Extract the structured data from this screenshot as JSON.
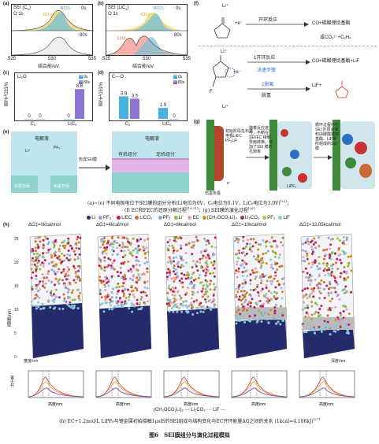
{
  "panel_letters": {
    "a": "(a)",
    "b": "(b)",
    "c": "(c)",
    "d": "(d)",
    "e": "(e)",
    "f": "(f)",
    "g": "(g)",
    "h": "(h)"
  },
  "a": {
    "sei": "SEI (C",
    "sub": "6",
    "sei_end": ")",
    "o1s": "O 1s",
    "t0": "0s",
    "t80": "80s",
    "co3": "CO₃²⁻",
    "rco3": "RCO₃⁻",
    "xlabel": "结合能/eV",
    "ticks": [
      "525",
      "530",
      "535"
    ]
  },
  "b": {
    "sei": "SEI (LiC",
    "sub": "6",
    "sei_end": ")",
    "o1s": "O 1s",
    "t0": "0s",
    "t80": "80s",
    "co3": "CO₃²⁻",
    "rco3": "RCO₃⁻",
    "li2o": "Li₂O",
    "xlabel": "结合能/eV",
    "ticks": [
      "525",
      "530",
      "535"
    ]
  },
  "c": {
    "title": "Li₂O",
    "ylabel": "原子占比/%",
    "legend": [
      "0s",
      "80s"
    ],
    "cats": [
      "C₆",
      "LiC₆"
    ],
    "labels": [
      "0",
      "0",
      "0",
      "8.6"
    ]
  },
  "d": {
    "title": "C—O",
    "ylabel": "原子占比/%",
    "legend": [
      "0s",
      "80s"
    ],
    "cats": [
      "C₆",
      "LiC₆"
    ],
    "labels": [
      "3.9",
      "3.5",
      "1.9",
      "0"
    ]
  },
  "chart_data": [
    {
      "type": "bar",
      "title": "Li₂O",
      "ylabel": "原子占比/%",
      "categories": [
        "C₆",
        "LiC₆"
      ],
      "series": [
        {
          "name": "0s",
          "values": [
            0,
            0
          ]
        },
        {
          "name": "80s",
          "values": [
            0,
            8.6
          ]
        }
      ]
    },
    {
      "type": "bar",
      "title": "C—O",
      "ylabel": "原子占比/%",
      "categories": [
        "C₆",
        "LiC₆"
      ],
      "series": [
        {
          "name": "0s",
          "values": [
            3.9,
            1.9
          ]
        },
        {
          "name": "80s",
          "values": [
            3.5,
            0
          ]
        }
      ]
    },
    {
      "type": "line",
      "xlabel": "高度/nm",
      "ylabel": "分子量",
      "panels": 5,
      "series": [
        {
          "name": "(CH₂OCO₂Li)₂"
        },
        {
          "name": "Li₂CO₃"
        },
        {
          "name": "LiF"
        }
      ]
    }
  ],
  "e": {
    "electrolyte1": "电解液",
    "graphite1": "石墨負極",
    "graphite2": "石墨負極",
    "arrow": "形成SEI膜",
    "electrolyte2": "电解液",
    "organic": "有机组分",
    "inorganic": "无机组分",
    "li": "Li⁺",
    "pf6": "PF₆⁻"
  },
  "f": {
    "li1": "Li⁺",
    "e1": "+e⁻",
    "path1": "开环反应",
    "prod1": "CO+碳酸锂烷基酯",
    "prod1b": "或CO₃²⁻+C₂H₄",
    "li2": "Li⁺",
    "e2": "+e⁻",
    "path2a": "1开环反应",
    "path2b": "决速步骤",
    "prod2": "CO+碳酸锂烷基酯+LiF",
    "path3a": "2脱氟",
    "path3b": "脱氢",
    "prod3": "LiF+",
    "li3": "Li⁺"
  },
  "g": {
    "box1": "初始阶段在石墨电极LiEC PF₆LiF",
    "box2": "随着反应进行，不断在SEI/EC 接触界面转换，增加了SEI 膜的孔隙率",
    "box3": "循环过程中在SEI 外层会堆积由碳酸锂烷基酯、LiF等所组成的SEI 膜",
    "label_electrode": "石墨负极",
    "label_lipf": "LiPF₆",
    "e": "e⁻"
  },
  "caption1": "(a)~(e) 不同电极电位下SEI膜的组分分布(Li电位为0V，C₆电位为0.1V，LiC₆电位为3.0V)",
  "caption1_ref": "[23]",
  "caption2": "(f) EC和FEC的还原分解过程",
  "caption2_ref": "[19-21]",
  "caption2b": "(g) SEI膜的演化过程",
  "caption2b_ref": "[26]",
  "legend_h": [
    {
      "label": "Li",
      "color": "#2a2f7a"
    },
    {
      "label": "PF₆⁻",
      "color": "#8fa6d8"
    },
    {
      "label": "LiEC",
      "color": "#c2185b"
    },
    {
      "label": "LiCO₃⁻",
      "color": "#d46a2a"
    },
    {
      "label": "PF₅",
      "color": "#7aa8c8"
    },
    {
      "label": "Li⁻",
      "color": "#8cbf3f"
    },
    {
      "label": "EC",
      "color": "#e8a0a8"
    },
    {
      "label": "(CH₂OCO₂Li)₂",
      "color": "#d18c1a"
    },
    {
      "label": "Li₂CO₃",
      "color": "#b02a5e"
    },
    {
      "label": "PF₃",
      "color": "#bcbf4a"
    },
    {
      "label": "LiF",
      "color": "#8ec8d8"
    }
  ],
  "h": {
    "dg": [
      "ΔG‡=0kcal/mol",
      "ΔG‡=4kcal/mol",
      "ΔG‡=8kcal/mol",
      "ΔG‡=10kcal/mol",
      "ΔG‡=12.05kcal/mol"
    ],
    "yaxis": "高度/nm",
    "yticks": [
      "25",
      "20",
      "15",
      "10",
      "5",
      "0"
    ],
    "width_label": "宽度/nm",
    "depth_label": "深度/nm",
    "w_ticks": [
      "5",
      "0"
    ],
    "d_ticks": [
      "0",
      "5"
    ],
    "mw_label": "分子量",
    "x_label": "高度/nm",
    "x_ticks": [
      "0",
      "10",
      "20"
    ],
    "legend": [
      "(CH₂OCO₂Li)₂",
      "Li₂CO₃",
      "LiF"
    ]
  },
  "caption3": "(h) EC+1.2mol/L LiPF₆与锂金属初始接触1μs后的SEI组成与结构变化与EC开环能量ΔG之间的关系 (1kcal=4.186kJ)",
  "caption3_ref": "[27]",
  "figure_title": "图6　SEI膜组分与演化过程模拟"
}
